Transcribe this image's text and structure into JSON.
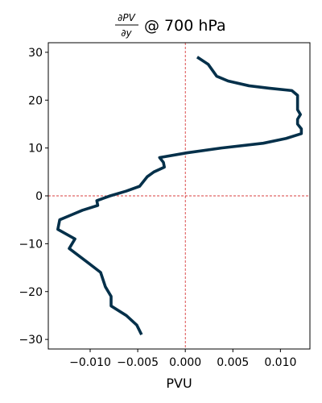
{
  "chart_data": {
    "type": "line",
    "title": {
      "numerator": "∂PV",
      "denominator": "∂y",
      "suffix": "@ 700 hPa"
    },
    "xlabel": "PVU",
    "ylabel": "",
    "xlim": [
      -0.0144,
      0.0131
    ],
    "ylim": [
      -32,
      32
    ],
    "x_ticks": [
      -0.01,
      -0.005,
      0.0,
      0.005,
      0.01
    ],
    "x_tick_labels": [
      "−0.010",
      "−0.005",
      "0.000",
      "0.005",
      "0.010"
    ],
    "y_ticks": [
      -30,
      -20,
      -10,
      0,
      10,
      20,
      30
    ],
    "y_tick_labels": [
      "−30",
      "−20",
      "−10",
      "0",
      "10",
      "20",
      "30"
    ],
    "grid": false,
    "reference_lines": {
      "x": 0,
      "y": 0,
      "color": "#cc0000",
      "style": "dashed"
    },
    "series": [
      {
        "color": "#04304a",
        "points": [
          [
            0.00125,
            29
          ],
          [
            0.0024,
            27.5
          ],
          [
            0.0033,
            25
          ],
          [
            0.0045,
            24
          ],
          [
            0.0067,
            23
          ],
          [
            0.0088,
            22.5
          ],
          [
            0.0112,
            22
          ],
          [
            0.0118,
            21
          ],
          [
            0.0118,
            18
          ],
          [
            0.0121,
            17
          ],
          [
            0.0118,
            16
          ],
          [
            0.0118,
            15
          ],
          [
            0.0122,
            14
          ],
          [
            0.0122,
            13
          ],
          [
            0.0106,
            12
          ],
          [
            0.0082,
            11
          ],
          [
            0.0038,
            10
          ],
          [
            0.0002,
            9
          ],
          [
            -0.0027,
            8
          ],
          [
            -0.0023,
            7
          ],
          [
            -0.0022,
            6
          ],
          [
            -0.0033,
            5
          ],
          [
            -0.004,
            4
          ],
          [
            -0.0048,
            2
          ],
          [
            -0.0062,
            1
          ],
          [
            -0.0079,
            0
          ],
          [
            -0.0093,
            -1
          ],
          [
            -0.0092,
            -2
          ],
          [
            -0.0108,
            -3
          ],
          [
            -0.012,
            -4
          ],
          [
            -0.0132,
            -5
          ],
          [
            -0.0134,
            -7
          ],
          [
            -0.0116,
            -9
          ],
          [
            -0.0122,
            -11
          ],
          [
            -0.0102,
            -14
          ],
          [
            -0.0089,
            -16
          ],
          [
            -0.0084,
            -19
          ],
          [
            -0.0078,
            -21
          ],
          [
            -0.0078,
            -23
          ],
          [
            -0.0062,
            -25
          ],
          [
            -0.0051,
            -27
          ],
          [
            -0.0046,
            -29
          ]
        ]
      }
    ]
  }
}
